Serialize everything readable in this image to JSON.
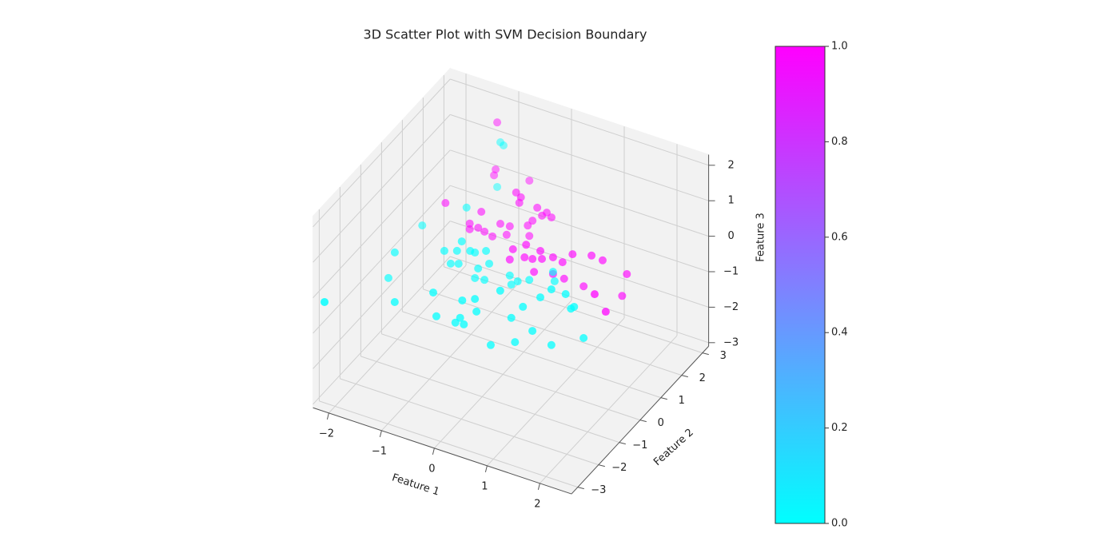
{
  "chart_data": {
    "type": "scatter3d",
    "title": "3D Scatter Plot with SVM Decision Boundary",
    "xlabel": "Feature 1",
    "ylabel": "Feature 2",
    "zlabel": "Feature 3",
    "colormap": "cool",
    "x": [
      -1.29,
      -1.32,
      -1.35,
      -0.68,
      -0.34,
      -0.25,
      -0.28,
      -1.68,
      0.06,
      0.24,
      0.15,
      0.33,
      -1.0,
      -1.22,
      -1.06,
      -0.64,
      -0.46,
      -0.12,
      -0.03,
      -1.22,
      -0.94,
      -0.52,
      -0.79,
      -0.09,
      0.44,
      0.19,
      0.71,
      0.13,
      0.41,
      0.56,
      0.74,
      0.95,
      1.13,
      1.32,
      1.68,
      1.89,
      2.35,
      0.95,
      1.16,
      1.53,
      0.59,
      2.33,
      2.26,
      2.54,
      -1.23,
      -1.17,
      -1.29,
      -1.28,
      -2.12,
      -0.78,
      -1.11,
      -2.05,
      -0.87,
      -0.62,
      -0.53,
      -0.99,
      -0.84,
      -0.32,
      -0.26,
      -0.47,
      -0.35,
      -0.53,
      -2.17,
      0.13,
      0.16,
      0.5,
      0.95,
      0.98,
      0.28,
      0.54,
      1.51,
      1.78,
      1.3,
      -0.73,
      -0.18,
      0.06,
      0.09,
      0.97,
      1.88,
      1.94,
      0.75,
      -0.22,
      -0.31,
      -0.67,
      -0.15,
      1.15,
      -2.2,
      -1.46,
      0.36,
      0.82,
      1.51,
      2.12
    ],
    "y": [
      3,
      3,
      3,
      3,
      1.5,
      1.5,
      1.5,
      1.5,
      1.5,
      1.5,
      1.5,
      1.5,
      1.5,
      1.5,
      1.5,
      1.5,
      1.5,
      1.5,
      1.5,
      1.5,
      1.5,
      1.5,
      1.5,
      1.5,
      0,
      0,
      0,
      0,
      0,
      0,
      0,
      0,
      0,
      0,
      0,
      0,
      0,
      0,
      0,
      0,
      0,
      -1.5,
      0,
      -1.5,
      3,
      3,
      3,
      1.5,
      1.5,
      0,
      0,
      0,
      0,
      0,
      0,
      0,
      0,
      0,
      0,
      0,
      0,
      0,
      0,
      0,
      0,
      0,
      0,
      0,
      0,
      -1.5,
      -1.5,
      -1.5,
      -1.5,
      -1.5,
      -1.5,
      -1.5,
      -1.5,
      -1.5,
      -1.5,
      -1.5,
      -1.5,
      -1.5,
      -1.5,
      -1.5,
      -1.5,
      -1.5,
      -3,
      -1.5,
      -1.5,
      -1.5,
      -1.5,
      -1.5
    ],
    "z": [
      1.47,
      0.13,
      -0.05,
      0.13,
      0.91,
      0.82,
      0.65,
      -0.05,
      0.68,
      0.63,
      0.5,
      0.54,
      0.04,
      -0.4,
      -0.44,
      -0.12,
      -0.1,
      0.09,
      0.27,
      -0.56,
      -0.49,
      -0.37,
      -0.55,
      -0.19,
      0.77,
      0.52,
      0.73,
      0.2,
      0.4,
      0.43,
      0.52,
      0.67,
      0.62,
      0.94,
      1.08,
      1.05,
      0.89,
      0.2,
      0.17,
      0.14,
      0.08,
      1.26,
      0.23,
      0.87,
      0.94,
      0.88,
      -0.35,
      0.02,
      -0.9,
      0.26,
      -0.17,
      -0.68,
      -0.05,
      0.07,
      0.07,
      -0.47,
      -0.4,
      0.22,
      -0.11,
      -0.35,
      -0.61,
      -0.65,
      -1.46,
      -0.25,
      -0.49,
      -0.19,
      0.26,
      0.01,
      -0.34,
      0.47,
      0.99,
      0.99,
      0.66,
      -0.21,
      -0.16,
      0.0,
      -0.34,
      0.23,
      0.63,
      0.71,
      -0.19,
      -0.67,
      -0.85,
      -0.85,
      -0.82,
      -0.36,
      -0.26,
      -0.84,
      -1.15,
      -0.84,
      -0.58,
      -0.08
    ],
    "values": [
      1,
      1,
      1,
      1,
      1,
      1,
      1,
      1,
      1,
      1,
      1,
      1,
      1,
      1,
      1,
      1,
      1,
      1,
      1,
      1,
      1,
      1,
      1,
      1,
      1,
      1,
      1,
      1,
      1,
      1,
      1,
      1,
      1,
      1,
      1,
      1,
      1,
      1,
      1,
      1,
      1,
      1,
      1,
      1,
      0,
      0,
      0,
      0,
      0,
      0,
      0,
      0,
      0,
      0,
      0,
      0,
      0,
      0,
      0,
      0,
      0,
      0,
      0,
      0,
      0,
      0,
      0,
      0,
      0,
      0,
      0,
      0,
      0,
      0,
      0,
      0,
      0,
      0,
      0,
      0,
      0,
      0,
      0,
      0,
      0,
      0,
      0,
      0,
      0,
      0,
      0,
      0
    ],
    "xlim": [
      -2.3,
      2.6
    ],
    "ylim": [
      -3.3,
      3.3
    ],
    "zlim": [
      -3.1,
      2.3
    ],
    "xticks": [
      {
        "value": -2,
        "label": "−2"
      },
      {
        "value": -1,
        "label": "−1"
      },
      0,
      1,
      2
    ],
    "yticks": [
      {
        "value": -3,
        "label": "−3"
      },
      {
        "value": -2,
        "label": "−2"
      },
      {
        "value": -1,
        "label": "−1"
      },
      0,
      1,
      2,
      3
    ],
    "zticks": [
      {
        "value": -3,
        "label": "−3"
      },
      {
        "value": -2,
        "label": "−2"
      },
      {
        "value": -1,
        "label": "−1"
      },
      0,
      1,
      2
    ],
    "clim": [
      0,
      1
    ],
    "cticks": [
      {
        "value": 0,
        "label": "0.0"
      },
      0.2,
      0.4,
      0.6,
      0.8,
      {
        "value": 1,
        "label": "1.0"
      }
    ],
    "grid": true
  }
}
